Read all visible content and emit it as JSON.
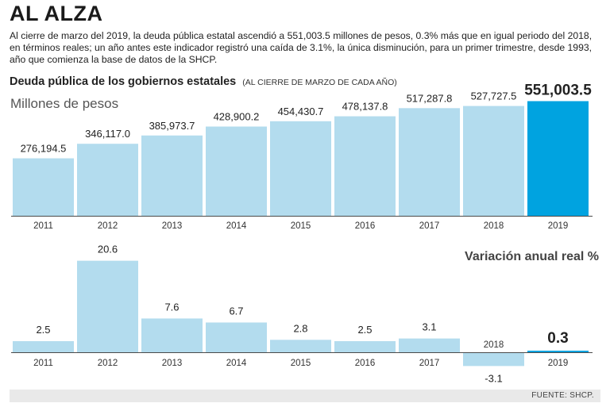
{
  "headline": "AL ALZA",
  "intro": "Al cierre de marzo del 2019, la deuda pública estatal ascendió a 551,003.5 millones de pesos, 0.3% más que en igual periodo del 2018, en términos reales; un año antes este indicador registró una caída de 3.1%, la única disminución, para un primer trimestre, desde 1993, año que comienza la base de datos de la SHCP.",
  "subtitle": "Deuda pública de los gobiernos estatales",
  "subtitle_note": "(AL CIERRE DE MARZO DE CADA AÑO)",
  "source": "FUENTE: SHCP.",
  "colors": {
    "bar": "#b3dcee",
    "highlight": "#00a3e0",
    "axis": "#4a4a4a"
  },
  "chart_data": [
    {
      "type": "bar",
      "title": "Deuda pública de los gobiernos estatales",
      "ylabel": "Millones de pesos",
      "categories": [
        "2011",
        "2012",
        "2013",
        "2014",
        "2015",
        "2016",
        "2017",
        "2018",
        "2019"
      ],
      "values": [
        276194.5,
        346117.0,
        385973.7,
        428900.2,
        454430.7,
        478137.8,
        517287.8,
        527727.5,
        551003.5
      ],
      "labels": [
        "276,194.5",
        "346,117.0",
        "385,973.7",
        "428,900.2",
        "454,430.7",
        "478,137.8",
        "517,287.8",
        "527,727.5",
        "551,003.5"
      ],
      "highlight_index": 8,
      "ylim": [
        0,
        610000
      ],
      "grid": false
    },
    {
      "type": "bar",
      "title": "Variación anual real %",
      "categories": [
        "2011",
        "2012",
        "2013",
        "2014",
        "2015",
        "2016",
        "2017",
        "2018",
        "2019"
      ],
      "values": [
        2.5,
        20.6,
        7.6,
        6.7,
        2.8,
        2.5,
        3.1,
        -3.1,
        0.3
      ],
      "labels": [
        "2.5",
        "20.6",
        "7.6",
        "6.7",
        "2.8",
        "2.5",
        "3.1",
        "-3.1",
        "0.3"
      ],
      "highlight_index": 8,
      "ylim": [
        -3.5,
        24
      ],
      "grid": false
    }
  ]
}
